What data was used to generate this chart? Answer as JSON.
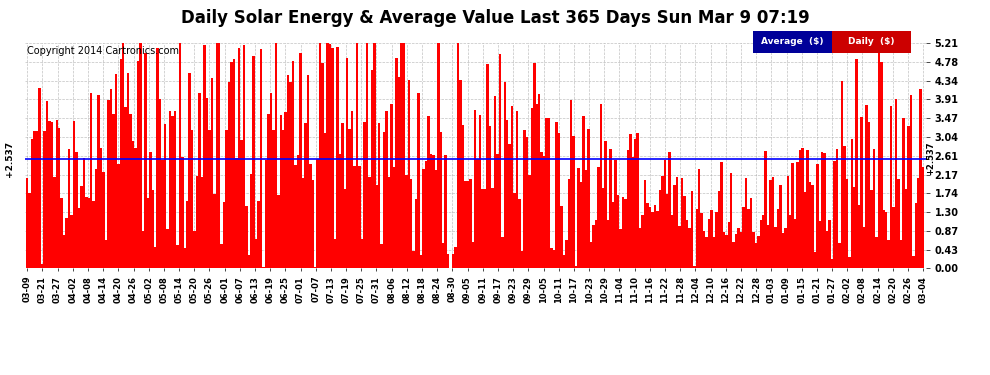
{
  "title": "Daily Solar Energy & Average Value Last 365 Days Sun Mar 9 07:19",
  "copyright": "Copyright 2014 Cartronics.com",
  "ylim": [
    0.0,
    5.21
  ],
  "yticks": [
    0.0,
    0.43,
    0.87,
    1.3,
    1.74,
    2.17,
    2.61,
    3.04,
    3.47,
    3.91,
    4.34,
    4.78,
    5.21
  ],
  "average_value": 2.537,
  "bar_color": "#ff0000",
  "average_line_color": "#0000ff",
  "background_color": "#ffffff",
  "plot_bg_color": "#ffffff",
  "grid_color": "#999999",
  "legend_avg_color": "#000099",
  "legend_daily_color": "#cc0000",
  "legend_text_color": "#ffffff",
  "title_fontsize": 12,
  "copyright_fontsize": 7,
  "x_labels": [
    "03-09",
    "03-21",
    "03-27",
    "04-02",
    "04-08",
    "04-14",
    "04-20",
    "04-26",
    "05-02",
    "05-08",
    "05-14",
    "05-20",
    "05-26",
    "06-01",
    "06-07",
    "06-13",
    "06-19",
    "06-25",
    "07-01",
    "07-07",
    "07-13",
    "07-19",
    "07-25",
    "07-31",
    "08-06",
    "08-12",
    "08-18",
    "08-24",
    "08-30",
    "09-05",
    "09-11",
    "09-17",
    "09-23",
    "09-29",
    "10-05",
    "10-11",
    "10-17",
    "10-23",
    "10-29",
    "11-04",
    "11-10",
    "11-16",
    "11-22",
    "11-28",
    "12-04",
    "12-10",
    "12-16",
    "12-22",
    "12-28",
    "01-03",
    "01-09",
    "01-15",
    "01-21",
    "01-27",
    "02-02",
    "02-08",
    "02-14",
    "02-20",
    "02-26",
    "03-04"
  ],
  "num_bars": 365,
  "seed": 12345
}
